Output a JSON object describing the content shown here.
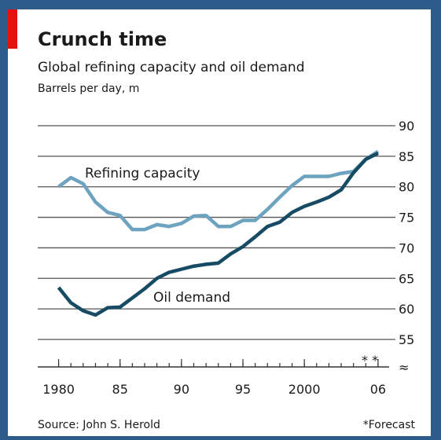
{
  "chart_data": {
    "type": "line",
    "title": "Crunch time",
    "subtitle": "Global refining capacity and oil demand",
    "y_label": "Barrels per day, m",
    "source": "Source: John S. Herold",
    "footnote": "*Forecast",
    "forecast_marks": "* *",
    "x": [
      1980,
      1981,
      1982,
      1983,
      1984,
      1985,
      1986,
      1987,
      1988,
      1989,
      1990,
      1991,
      1992,
      1993,
      1994,
      1995,
      1996,
      1997,
      1998,
      1999,
      2000,
      2001,
      2002,
      2003,
      2004,
      2005,
      2006
    ],
    "series": [
      {
        "name": "Refining capacity",
        "color": "#6ea3c0",
        "values": [
          80,
          81.5,
          80.5,
          77.5,
          75.8,
          75.3,
          73,
          73,
          73.8,
          73.5,
          74,
          75.2,
          75.3,
          73.5,
          73.5,
          74.5,
          74.5,
          76.3,
          78.3,
          80.2,
          81.7,
          81.7,
          81.7,
          82.2,
          82.5,
          84.5,
          85.8
        ]
      },
      {
        "name": "Oil demand",
        "color": "#174b63",
        "values": [
          63.5,
          61,
          59.7,
          59,
          60.2,
          60.3,
          61.8,
          63.3,
          65,
          66,
          66.5,
          67,
          67.3,
          67.5,
          69,
          70.2,
          71.8,
          73.5,
          74.2,
          75.8,
          76.8,
          77.5,
          78.3,
          79.5,
          82.3,
          84.5,
          85.5
        ]
      }
    ],
    "xlim": [
      1978.3,
      2006.9
    ],
    "xticks": [
      {
        "value": 1980,
        "label": "1980"
      },
      {
        "value": 1985,
        "label": "85"
      },
      {
        "value": 1990,
        "label": "90"
      },
      {
        "value": 1995,
        "label": "95"
      },
      {
        "value": 2000,
        "label": "2000"
      },
      {
        "value": 2006,
        "label": "06"
      }
    ],
    "ylim": [
      55,
      90
    ],
    "yticks": [
      55,
      60,
      65,
      70,
      75,
      80,
      85,
      90
    ],
    "grid": true
  }
}
